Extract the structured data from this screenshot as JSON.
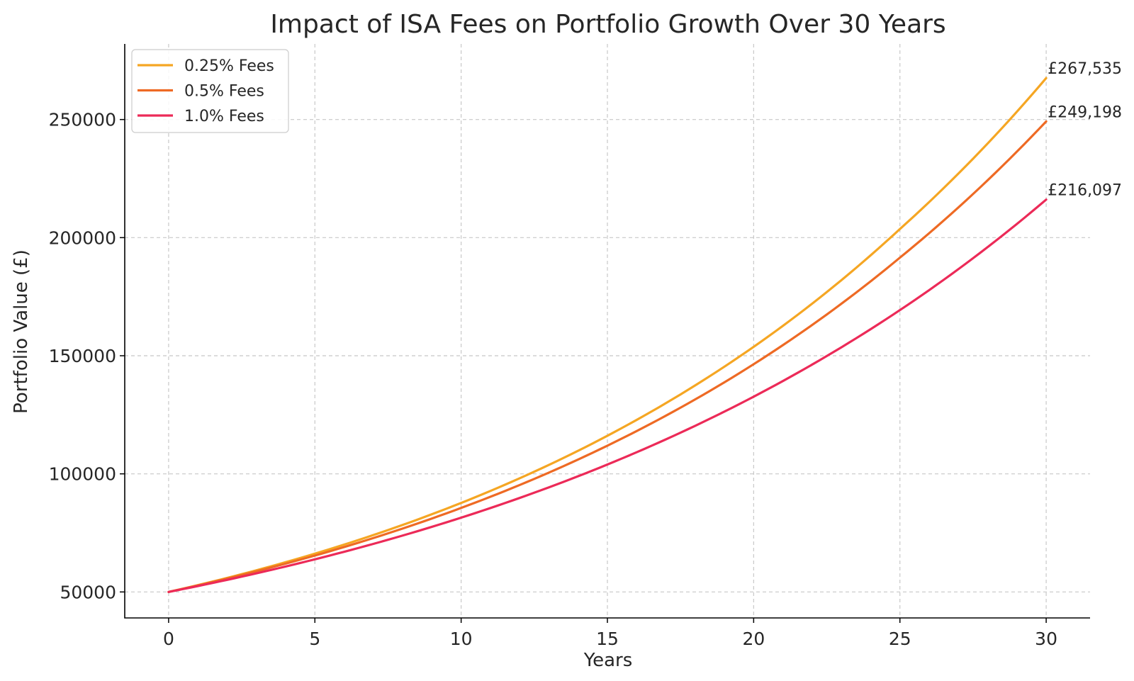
{
  "chart_data": {
    "type": "line",
    "title": "Impact of ISA Fees on Portfolio Growth Over 30 Years",
    "xlabel": "Years",
    "ylabel": "Portfolio Value (£)",
    "xlim": [
      -1.5,
      31.5
    ],
    "ylim": [
      39000,
      282000
    ],
    "xticks": [
      0,
      5,
      10,
      15,
      20,
      25,
      30
    ],
    "yticks": [
      50000,
      100000,
      150000,
      200000,
      250000
    ],
    "xtick_labels": [
      "0",
      "5",
      "10",
      "15",
      "20",
      "25",
      "30"
    ],
    "ytick_labels": [
      "50000",
      "100000",
      "150000",
      "200000",
      "250000"
    ],
    "grid": true,
    "legend_position": "top-left",
    "x": [
      0,
      5,
      10,
      15,
      20,
      25,
      30
    ],
    "series": [
      {
        "name": "0.25% Fees",
        "color": "#F5A623",
        "values": [
          50000,
          66214,
          87686,
          116121,
          153776,
          203642,
          267535
        ],
        "end_label": "£267,535"
      },
      {
        "name": "0.5% Fees",
        "color": "#EE6A24",
        "values": [
          50000,
          65405,
          85563,
          111932,
          146419,
          191533,
          249198
        ],
        "end_label": "£249,198"
      },
      {
        "name": "1.0% Fees",
        "color": "#EC2A58",
        "values": [
          50000,
          63814,
          81445,
          103944,
          132670,
          169319,
          216097
        ],
        "end_label": "£216,097"
      }
    ]
  }
}
